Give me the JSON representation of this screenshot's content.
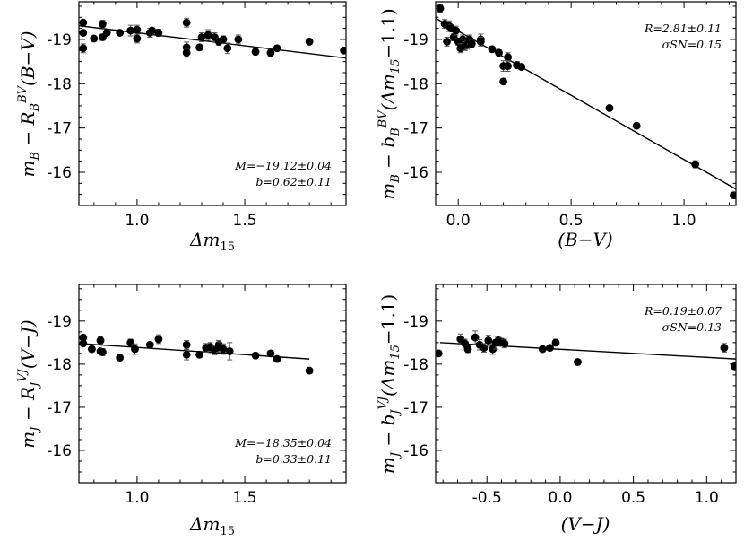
{
  "chart_data": [
    {
      "type": "scatter",
      "xlabel": "Δm15",
      "ylabel": "mB − R_B^BV (B−V)",
      "xlim": [
        0.73,
        1.97
      ],
      "ylim": [
        -15.25,
        -19.85
      ],
      "xticks": [
        1.0,
        1.5
      ],
      "xtick_labels": [
        "1.0",
        "1.5"
      ],
      "yticks": [
        -16,
        -17,
        -18,
        -19
      ],
      "ytick_labels": [
        "-16",
        "-17",
        "-18",
        "-19"
      ],
      "annotation": [
        "M=−19.12±0.04",
        "b=0.62±0.11"
      ],
      "annotation_pos": "bottom-right",
      "fit": {
        "x": [
          0.73,
          1.97
        ],
        "y": [
          -19.31,
          -18.58
        ]
      },
      "points": {
        "x": [
          0.75,
          0.75,
          0.75,
          0.8,
          0.84,
          0.84,
          0.86,
          0.92,
          0.97,
          1.0,
          1.0,
          1.06,
          1.07,
          1.1,
          1.23,
          1.23,
          1.23,
          1.29,
          1.3,
          1.33,
          1.36,
          1.38,
          1.4,
          1.42,
          1.47,
          1.55,
          1.62,
          1.65,
          1.8,
          1.96
        ],
        "y": [
          -19.38,
          -19.15,
          -18.8,
          -19.02,
          -19.35,
          -19.05,
          -19.15,
          -19.15,
          -19.2,
          -19.22,
          -19.02,
          -19.15,
          -19.2,
          -19.15,
          -19.38,
          -18.82,
          -18.7,
          -18.82,
          -19.05,
          -19.1,
          -19.05,
          -18.95,
          -19.0,
          -18.8,
          -19.0,
          -18.72,
          -18.7,
          -18.8,
          -18.95,
          -18.75
        ],
        "err": [
          0.06,
          0.06,
          0.1,
          0.05,
          0.08,
          0.07,
          0.06,
          0.05,
          0.12,
          0.1,
          0.1,
          0.1,
          0.06,
          0.08,
          0.1,
          0.12,
          0.1,
          0.06,
          0.1,
          0.12,
          0.1,
          0.08,
          0.08,
          0.12,
          0.1,
          0.06,
          0.08,
          0.06,
          0.06,
          0.06
        ]
      }
    },
    {
      "type": "scatter",
      "xlabel": "(B−V)",
      "ylabel": "mB − b_B^BV (Δm15 − 1.1)",
      "xlim": [
        -0.1,
        1.23
      ],
      "ylim": [
        -15.25,
        -19.85
      ],
      "xticks": [
        0.0,
        0.5,
        1.0
      ],
      "xtick_labels": [
        "0.0",
        "0.5",
        "1.0"
      ],
      "yticks": [
        -16,
        -17,
        -18,
        -19
      ],
      "ytick_labels": [
        "-16",
        "-17",
        "-18",
        "-19"
      ],
      "annotation": [
        "R=2.81±0.11",
        "σSN=0.15"
      ],
      "annotation_pos": "top-right",
      "fit": {
        "x": [
          -0.1,
          1.23
        ],
        "y": [
          -19.48,
          -15.62
        ]
      },
      "points": {
        "x": [
          -0.08,
          -0.06,
          -0.05,
          -0.04,
          -0.03,
          -0.02,
          -0.01,
          0.0,
          0.01,
          0.02,
          0.03,
          0.04,
          0.05,
          0.06,
          0.1,
          0.1,
          0.15,
          0.18,
          0.2,
          0.2,
          0.22,
          0.22,
          0.26,
          0.28,
          0.67,
          0.79,
          1.05,
          1.22
        ],
        "y": [
          -19.7,
          -19.35,
          -18.95,
          -19.3,
          -19.25,
          -19.05,
          -19.2,
          -18.95,
          -18.8,
          -19.0,
          -18.85,
          -18.88,
          -19.0,
          -18.9,
          -19.0,
          -18.95,
          -18.78,
          -18.7,
          -18.05,
          -18.4,
          -18.6,
          -18.4,
          -18.42,
          -18.38,
          -17.45,
          -17.05,
          -16.18,
          -15.48
        ],
        "err": [
          0.08,
          0.1,
          0.1,
          0.12,
          0.08,
          0.08,
          0.1,
          0.08,
          0.1,
          0.1,
          0.1,
          0.1,
          0.1,
          0.08,
          0.12,
          0.1,
          0.06,
          0.06,
          0.06,
          0.12,
          0.1,
          0.12,
          0.08,
          0.06,
          0.06,
          0.06,
          0.08,
          0.06
        ]
      }
    },
    {
      "type": "scatter",
      "xlabel": "Δm15",
      "ylabel": "mJ − R_J^VJ (V−J)",
      "xlim": [
        0.73,
        1.97
      ],
      "ylim": [
        -15.25,
        -19.85
      ],
      "xticks": [
        1.0,
        1.5
      ],
      "xtick_labels": [
        "1.0",
        "1.5"
      ],
      "yticks": [
        -16,
        -17,
        -18,
        -19
      ],
      "ytick_labels": [
        "-16",
        "-17",
        "-18",
        "-19"
      ],
      "annotation": [
        "M=−18.35±0.04",
        "b=0.33±0.11"
      ],
      "annotation_pos": "bottom-right",
      "fit": {
        "x": [
          0.73,
          1.8
        ],
        "y": [
          -18.48,
          -18.12
        ]
      },
      "points": {
        "x": [
          0.75,
          0.75,
          0.79,
          0.83,
          0.83,
          0.84,
          0.92,
          0.97,
          0.99,
          1.06,
          1.1,
          1.23,
          1.23,
          1.29,
          1.32,
          1.34,
          1.36,
          1.38,
          1.38,
          1.4,
          1.43,
          1.55,
          1.62,
          1.65,
          1.8
        ],
        "y": [
          -18.62,
          -18.48,
          -18.35,
          -18.55,
          -18.3,
          -18.28,
          -18.15,
          -18.5,
          -18.35,
          -18.45,
          -18.58,
          -18.45,
          -18.22,
          -18.22,
          -18.38,
          -18.4,
          -18.32,
          -18.45,
          -18.4,
          -18.35,
          -18.3,
          -18.2,
          -18.25,
          -18.12,
          -17.85
        ],
        "err": [
          0.06,
          0.06,
          0.06,
          0.08,
          0.06,
          0.08,
          0.06,
          0.08,
          0.12,
          0.06,
          0.1,
          0.1,
          0.12,
          0.06,
          0.1,
          0.1,
          0.1,
          0.1,
          0.12,
          0.12,
          0.2,
          0.06,
          0.06,
          0.06,
          0.06
        ]
      }
    },
    {
      "type": "scatter",
      "xlabel": "(V−J)",
      "ylabel": "mJ − b_J^VJ (Δm15 − 1.1)",
      "xlim": [
        -0.85,
        1.2
      ],
      "ylim": [
        -15.25,
        -19.85
      ],
      "xticks": [
        -0.5,
        0.0,
        0.5,
        1.0
      ],
      "xtick_labels": [
        "-0.5",
        "0.0",
        "0.5",
        "1.0"
      ],
      "yticks": [
        -16,
        -17,
        -18,
        -19
      ],
      "ytick_labels": [
        "-16",
        "-17",
        "-18",
        "-19"
      ],
      "annotation": [
        "R=0.19±0.07",
        "σSN=0.13"
      ],
      "annotation_pos": "top-right",
      "fit": {
        "x": [
          -0.82,
          1.2
        ],
        "y": [
          -18.5,
          -18.12
        ]
      },
      "points": {
        "x": [
          -0.83,
          -0.68,
          -0.65,
          -0.63,
          -0.58,
          -0.55,
          -0.52,
          -0.49,
          -0.46,
          -0.44,
          -0.42,
          -0.4,
          -0.38,
          -0.12,
          -0.07,
          -0.03,
          0.12,
          1.12,
          1.19
        ],
        "y": [
          -18.25,
          -18.58,
          -18.48,
          -18.35,
          -18.62,
          -18.45,
          -18.38,
          -18.55,
          -18.35,
          -18.5,
          -18.55,
          -18.52,
          -18.48,
          -18.35,
          -18.38,
          -18.5,
          -18.05,
          -18.38,
          -17.95
        ],
        "err": [
          0.06,
          0.12,
          0.1,
          0.08,
          0.15,
          0.12,
          0.1,
          0.12,
          0.12,
          0.15,
          0.1,
          0.08,
          0.1,
          0.06,
          0.06,
          0.08,
          0.06,
          0.1,
          0.06
        ]
      }
    }
  ]
}
